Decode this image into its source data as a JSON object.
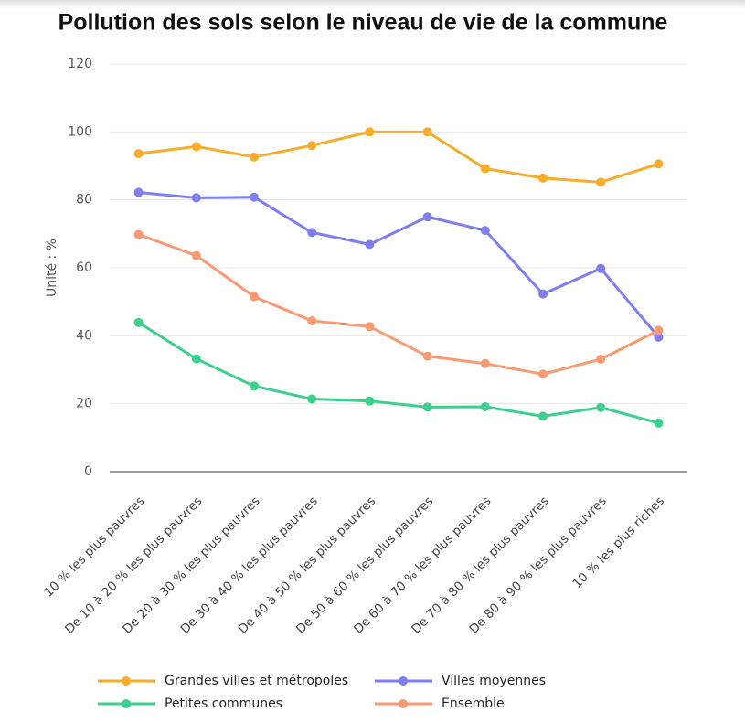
{
  "chart_data": {
    "type": "line",
    "title": "Pollution des sols selon le niveau de vie de la commune",
    "y_label": "Unité : %",
    "categories": [
      "10 % les plus pauvres",
      "De 10 à 20 % les plus pauvres",
      "De 20 à 30 % les plus pauvres",
      "De 30 à 40 % les plus pauvres",
      "De 40 à 50 % les plus pauvres",
      "De 50 à 60 % les plus pauvres",
      "De 60 à 70 % les plus pauvres",
      "De 70 à 80 % les plus pauvres",
      "De 80 à 90 % les plus pauvres",
      "10 % les plus riches"
    ],
    "series": [
      {
        "name": "Grandes villes et métropoles",
        "color": "#f8ac2a",
        "values": [
          93.6,
          95.7,
          92.6,
          96,
          100,
          100,
          89.2,
          86.4,
          85.2,
          90.6
        ]
      },
      {
        "name": "Villes moyennes",
        "color": "#7f7ef0",
        "values": [
          82.2,
          80.6,
          80.8,
          70.4,
          66.9,
          75,
          71,
          52.3,
          59.8,
          39.6
        ]
      },
      {
        "name": "Petites communes",
        "color": "#3ccf8e",
        "values": [
          43.9,
          33.2,
          25.2,
          21.4,
          20.8,
          19,
          19.1,
          16.3,
          18.9,
          14.3
        ]
      },
      {
        "name": "Ensemble",
        "color": "#f99a73",
        "values": [
          69.8,
          63.6,
          51.5,
          44.4,
          42.7,
          34,
          31.8,
          28.7,
          33.1,
          41.6
        ]
      }
    ],
    "ylim": [
      0,
      120
    ],
    "yticks": [
      0,
      20,
      40,
      60,
      80,
      100,
      120
    ],
    "grid": true
  }
}
